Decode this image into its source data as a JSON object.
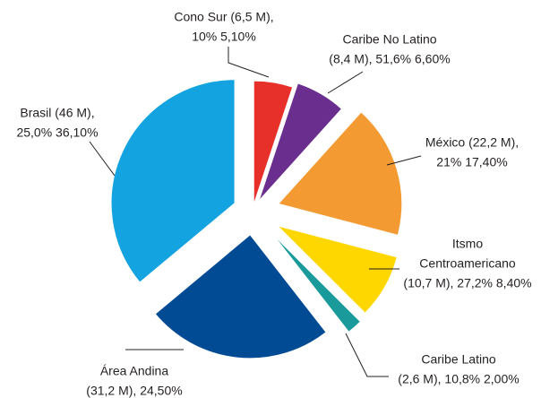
{
  "chart_data": {
    "type": "pie",
    "labels": [
      [
        "Cono Sur (6,5 M),",
        "10% 5,10%"
      ],
      [
        "Caribe No Latino",
        "(8,4 M), 51,6% 6,60%"
      ],
      [
        "México (22,2 M),",
        "21% 17,40%"
      ],
      [
        "Itsmo",
        "Centroamericano",
        "(10,7 M), 27,2% 8,40%"
      ],
      [
        "Caribe Latino",
        "(2,6 M), 10,8% 2,00%"
      ],
      [
        "Área Andina",
        "(31,2 M), 24,50%"
      ],
      [
        "Brasil (46 M),",
        "25,0% 36,10%"
      ]
    ],
    "values": [
      5.1,
      6.6,
      17.4,
      8.4,
      2.0,
      24.5,
      36.1
    ],
    "colors": [
      "#e8302a",
      "#6a2f8e",
      "#f39b32",
      "#ffd700",
      "#1a9a9a",
      "#004b93",
      "#12a3e0"
    ]
  }
}
